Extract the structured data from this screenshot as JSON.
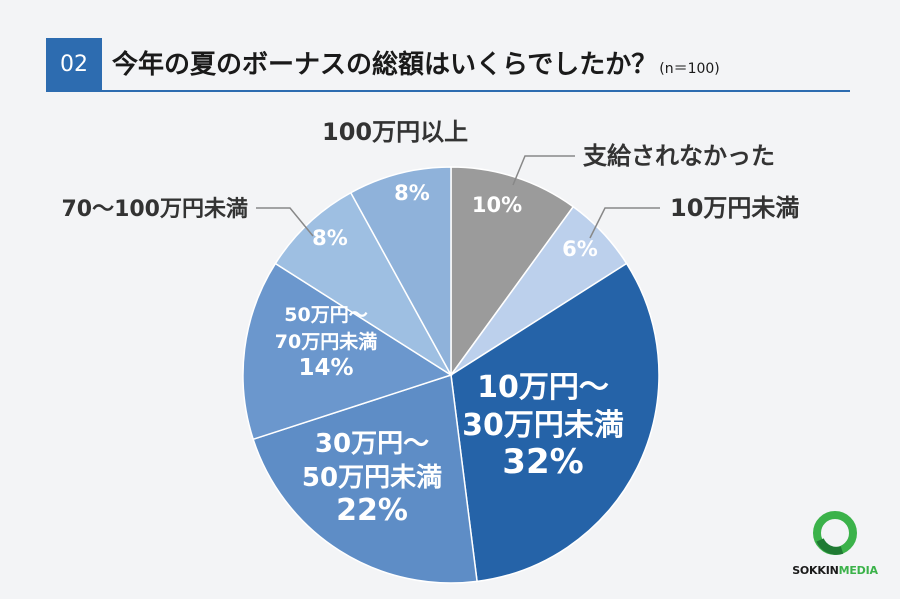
{
  "header": {
    "badge": "02",
    "title": "今年の夏のボーナスの総額はいくらでしたか？",
    "sample": "(n＝100)"
  },
  "chart_data": {
    "type": "pie",
    "title": "今年の夏のボーナスの総額はいくらでしたか？",
    "unit": "%",
    "slices": [
      {
        "label": "支給されなかった",
        "value": 10,
        "value_label": "10%",
        "color": "#9b9b9b"
      },
      {
        "label": "10万円未満",
        "value": 6,
        "value_label": "6%",
        "color": "#bcd0ec"
      },
      {
        "label": "10万円～\n30万円未満",
        "value": 32,
        "value_label": "32%",
        "color": "#2563a8"
      },
      {
        "label": "30万円～\n50万円未満",
        "value": 22,
        "value_label": "22%",
        "color": "#5e8dc6"
      },
      {
        "label": "50万円～\n70万円未満",
        "value": 14,
        "value_label": "14%",
        "color": "#6b97cd"
      },
      {
        "label": "70～100万円未満",
        "value": 8,
        "value_label": "8%",
        "color": "#9ebfe2"
      },
      {
        "label": "100万円以上",
        "value": 8,
        "value_label": "8%",
        "color": "#8fb2da"
      }
    ]
  },
  "logo": {
    "text_main": "SOKKIN",
    "text_accent": "MEDIA",
    "ring_color": "#3bb24a"
  }
}
